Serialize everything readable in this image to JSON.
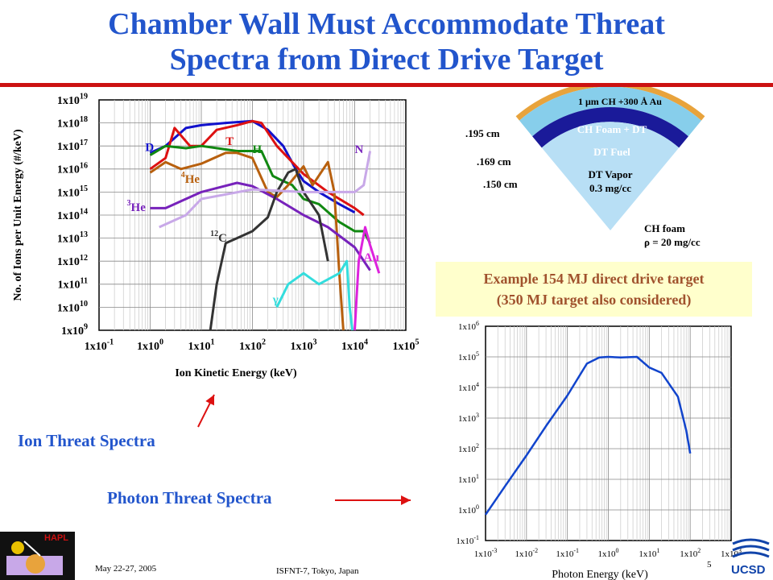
{
  "slide": {
    "title_line1": "Chamber Wall Must Accommodate Threat",
    "title_line2": "Spectra from Direct Drive Target",
    "example_line1": "Example 154 MJ direct drive target",
    "example_line2": "(350 MJ target also considered)",
    "ion_callout": "Ion Threat Spectra",
    "photon_callout": "Photon Threat Spectra",
    "footer_date": "May 22-27, 2005",
    "footer_conference": "ISFNT-7, Tokyo, Japan",
    "page_number": "5",
    "logo_left": "HAPL",
    "logo_right": "UCSD"
  },
  "target": {
    "layers": [
      {
        "label": "1 μm CH +300 Å Au",
        "color": "#e8a33c"
      },
      {
        "label": "CH Foam + DT",
        "color": "#87ceeb"
      },
      {
        "label": "DT Fuel",
        "color": "#1a1a99"
      },
      {
        "label": "DT Vapor",
        "sublabel": "0.3 mg/cc",
        "color": "#b8dff5"
      }
    ],
    "radii": [
      {
        "label": ".195 cm"
      },
      {
        "label": ".169 cm"
      },
      {
        "label": ".150 cm"
      }
    ],
    "core_label": "CH foam",
    "core_density": "ρ = 20 mg/cc"
  },
  "chart_data": [
    {
      "type": "line",
      "xlabel": "Ion Kinetic Energy (keV)",
      "ylabel": "No. of Ions per Unit Energy (#/keV)",
      "x_scale": "log",
      "y_scale": "log",
      "xlim": [
        0.1,
        100000
      ],
      "ylim": [
        1000000000.0,
        1e+19
      ],
      "grid": true,
      "x_ticks": [
        {
          "b": "1x10",
          "e": "-1"
        },
        {
          "b": "1x10",
          "e": "0"
        },
        {
          "b": "1x10",
          "e": "1"
        },
        {
          "b": "1x10",
          "e": "2"
        },
        {
          "b": "1x10",
          "e": "3"
        },
        {
          "b": "1x10",
          "e": "4"
        },
        {
          "b": "1x10",
          "e": "5"
        }
      ],
      "y_ticks": [
        {
          "b": "1x10",
          "e": "9"
        },
        {
          "b": "1x10",
          "e": "10"
        },
        {
          "b": "1x10",
          "e": "11"
        },
        {
          "b": "1x10",
          "e": "12"
        },
        {
          "b": "1x10",
          "e": "13"
        },
        {
          "b": "1x10",
          "e": "14"
        },
        {
          "b": "1x10",
          "e": "15"
        },
        {
          "b": "1x10",
          "e": "16"
        },
        {
          "b": "1x10",
          "e": "17"
        },
        {
          "b": "1x10",
          "e": "18"
        },
        {
          "b": "1x10",
          "e": "19"
        }
      ],
      "series": [
        {
          "name": "D",
          "color": "#1111cc",
          "points": [
            [
              1.0,
              5e+16
            ],
            [
              2.0,
              1e+17
            ],
            [
              5.0,
              6e+17
            ],
            [
              10,
              8e+17
            ],
            [
              30,
              1e+18
            ],
            [
              100,
              1.2e+18
            ],
            [
              200,
              5e+17
            ],
            [
              400,
              1e+17
            ],
            [
              700,
              1e+16
            ],
            [
              1000,
              3000000000000000.0
            ],
            [
              2000,
              1000000000000000.0
            ],
            [
              5000,
              300000000000000.0
            ],
            [
              10000,
              130000000000000.0
            ]
          ]
        },
        {
          "name": "T",
          "color": "#dd1111",
          "points": [
            [
              1.0,
              1e+16
            ],
            [
              2.0,
              3e+16
            ],
            [
              3.0,
              6e+17
            ],
            [
              6.0,
              1e+17
            ],
            [
              10,
              1e+17
            ],
            [
              20,
              5e+17
            ],
            [
              50,
              8e+17
            ],
            [
              100,
              1.2e+18
            ],
            [
              150,
              1e+18
            ],
            [
              300,
              1e+17
            ],
            [
              1000,
              6000000000000000.0
            ],
            [
              3000,
              1000000000000000.0
            ],
            [
              10000,
              200000000000000.0
            ],
            [
              15000,
              100000000000000.0
            ]
          ]
        },
        {
          "name": "H",
          "color": "#118811",
          "points": [
            [
              1.0,
              4e+16
            ],
            [
              2.0,
              1e+17
            ],
            [
              5.0,
              8e+16
            ],
            [
              10,
              1e+17
            ],
            [
              50,
              6e+16
            ],
            [
              150,
              6e+16
            ],
            [
              250,
              5000000000000000.0
            ],
            [
              400,
              3000000000000000.0
            ],
            [
              600,
              2000000000000000.0
            ],
            [
              1000,
              500000000000000.0
            ],
            [
              2000,
              300000000000000.0
            ],
            [
              5000,
              50000000000000.0
            ],
            [
              10000,
              20000000000000.0
            ],
            [
              15000,
              20000000000000.0
            ],
            [
              20000,
              6000000000000.0
            ]
          ]
        },
        {
          "name": "4He",
          "color": "#b8600e",
          "points": [
            [
              1.0,
              7000000000000000.0
            ],
            [
              2.0,
              2e+16
            ],
            [
              4.0,
              1e+16
            ],
            [
              10,
              1.7e+16
            ],
            [
              30,
              5e+16
            ],
            [
              50,
              5e+16
            ],
            [
              100,
              3e+16
            ],
            [
              200,
              1000000000000000.0
            ],
            [
              300,
              600000000000000.0
            ],
            [
              500,
              2000000000000000.0
            ],
            [
              1000,
              1.3e+16
            ],
            [
              1500,
              2000000000000000.0
            ],
            [
              3000,
              2e+16
            ],
            [
              4000,
              1000000000000000.0
            ],
            [
              5000,
              300000000000.0
            ],
            [
              6000,
              1000000000.0
            ]
          ]
        },
        {
          "name": "3He",
          "color": "#7722bb",
          "points": [
            [
              1.0,
              200000000000000.0
            ],
            [
              2.0,
              200000000000000.0
            ],
            [
              4.0,
              400000000000000.0
            ],
            [
              10,
              1000000000000000.0
            ],
            [
              50,
              2500000000000000.0
            ],
            [
              100,
              1800000000000000.0
            ],
            [
              300,
              500000000000000.0
            ],
            [
              1000,
              100000000000000.0
            ],
            [
              3000,
              30000000000000.0
            ],
            [
              10000,
              4000000000000.0
            ],
            [
              20000,
              400000000000.0
            ]
          ]
        },
        {
          "name": "12C",
          "color": "#333333",
          "points": [
            [
              15,
              1000000000.0
            ],
            [
              20,
              100000000000.0
            ],
            [
              30,
              6000000000000.0
            ],
            [
              50,
              10000000000000.0
            ],
            [
              100,
              20000000000000.0
            ],
            [
              200,
              80000000000000.0
            ],
            [
              300,
              1000000000000000.0
            ],
            [
              500,
              7000000000000000.0
            ],
            [
              700,
              1e+16
            ],
            [
              1000,
              1000000000000000.0
            ],
            [
              2000,
              100000000000000.0
            ],
            [
              3000,
              1000000000000.0
            ]
          ]
        },
        {
          "name": "N",
          "color": "#c8a8e8",
          "points": [
            [
              1.5,
              30000000000000.0
            ],
            [
              5.0,
              100000000000000.0
            ],
            [
              10,
              500000000000000.0
            ],
            [
              100,
              1300000000000000.0
            ],
            [
              1000,
              1000000000000000.0
            ],
            [
              5000,
              1000000000000000.0
            ],
            [
              10000,
              1000000000000000.0
            ],
            [
              15000,
              2000000000000000.0
            ],
            [
              20000,
              6e+16
            ]
          ]
        },
        {
          "name": "Au",
          "color": "#dd22dd",
          "points": [
            [
              10000,
              1000000000.0
            ],
            [
              12000,
              1000000000000.0
            ],
            [
              16000,
              30000000000000.0
            ],
            [
              20000,
              5000000000000.0
            ],
            [
              30000,
              300000000000.0
            ]
          ]
        },
        {
          "name": "γ",
          "color": "#33dddd",
          "points": [
            [
              300,
              10000000000.0
            ],
            [
              500,
              100000000000.0
            ],
            [
              1000,
              300000000000.0
            ],
            [
              2000,
              100000000000.0
            ],
            [
              5000,
              300000000000.0
            ],
            [
              7000,
              1000000000000.0
            ],
            [
              8000,
              10000000000.0
            ],
            [
              9000,
              1000000000.0
            ]
          ]
        }
      ],
      "labels": [
        {
          "text": "D",
          "x": 0.8,
          "y": 6e+16,
          "color": "#1111cc"
        },
        {
          "text": "T",
          "x": 30,
          "y": 1.1e+17,
          "color": "#dd1111"
        },
        {
          "text": "H",
          "x": 100,
          "y": 5e+16,
          "color": "#118811"
        },
        {
          "text": "N",
          "x": 10000,
          "y": 5e+16,
          "color": "#7722bb"
        },
        {
          "text": "Au",
          "x": 15000,
          "y": 1000000000000.0,
          "color": "#dd22dd"
        },
        {
          "text": "γ",
          "x": 250,
          "y": 15000000000.0,
          "color": "#33dddd"
        },
        {
          "text": "He",
          "x": 4,
          "y": 2500000000000000.0,
          "sup": "4",
          "color": "#b8600e"
        },
        {
          "text": "He",
          "x": 0.35,
          "y": 150000000000000.0,
          "sup": "3",
          "color": "#7722bb"
        },
        {
          "text": "C",
          "x": 15,
          "y": 7000000000000.0,
          "sup": "12",
          "color": "#333333"
        }
      ]
    },
    {
      "type": "line",
      "xlabel": "Photon Energy (keV)",
      "ylabel": "",
      "x_scale": "log",
      "y_scale": "log",
      "xlim": [
        0.001,
        1000
      ],
      "ylim": [
        0.1,
        1000000
      ],
      "grid": true,
      "x_ticks": [
        {
          "b": "1x10",
          "e": "-3"
        },
        {
          "b": "1x10",
          "e": "-2"
        },
        {
          "b": "1x10",
          "e": "-1"
        },
        {
          "b": "1x10",
          "e": "0"
        },
        {
          "b": "1x10",
          "e": "1"
        },
        {
          "b": "1x10",
          "e": "2"
        },
        {
          "b": "1x10",
          "e": "3"
        }
      ],
      "y_ticks": [
        {
          "b": "1x10",
          "e": "-1"
        },
        {
          "b": "1x10",
          "e": "0"
        },
        {
          "b": "1x10",
          "e": "1"
        },
        {
          "b": "1x10",
          "e": "2"
        },
        {
          "b": "1x10",
          "e": "3"
        },
        {
          "b": "1x10",
          "e": "4"
        },
        {
          "b": "1x10",
          "e": "5"
        },
        {
          "b": "1x10",
          "e": "6"
        }
      ],
      "series": [
        {
          "name": "",
          "color": "#1144cc",
          "points": [
            [
              0.001,
              0.7
            ],
            [
              0.003,
              6
            ],
            [
              0.01,
              60
            ],
            [
              0.03,
              550
            ],
            [
              0.1,
              5500
            ],
            [
              0.3,
              60000
            ],
            [
              0.6,
              95000
            ],
            [
              1.0,
              100000
            ],
            [
              2.0,
              95000
            ],
            [
              5.0,
              100000
            ],
            [
              10,
              45000
            ],
            [
              20,
              30000
            ],
            [
              50,
              5000
            ],
            [
              80,
              400
            ],
            [
              100,
              70
            ]
          ]
        }
      ]
    }
  ]
}
